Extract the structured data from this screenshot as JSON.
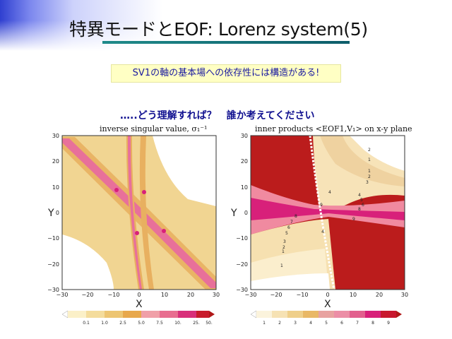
{
  "slide": {
    "title": "特異モードとEOF: Lorenz system(5)",
    "note": "SV1の軸の基本場への依存性には構造がある!",
    "question": "…..どう理解すれば？　誰か考えてください"
  },
  "left_panel": {
    "title": "inverse singular value, σ₁⁻¹",
    "xlabel": "X",
    "ylabel": "Y",
    "x_ticks": [
      "−30",
      "−20",
      "−10",
      "0",
      "10",
      "20",
      "30"
    ],
    "y_ticks": [
      "30",
      "20",
      "10",
      "0",
      "−10",
      "−20",
      "−30"
    ],
    "colorbar_labels": [
      "0.1",
      "1.0",
      "2.5",
      "5.0",
      "7.5",
      "10.",
      "25.",
      "50."
    ]
  },
  "right_panel": {
    "title": "inner products <EOF1,V₁> on x-y plane",
    "xlabel": "X",
    "ylabel": "Y",
    "x_ticks": [
      "−30",
      "−20",
      "−10",
      "0",
      "10",
      "20",
      "30"
    ],
    "y_ticks": [
      "30",
      "20",
      "10",
      "0",
      "−10",
      "−20",
      "−30"
    ],
    "colorbar_labels": [
      "1",
      "2",
      "3",
      "4",
      "5",
      "6",
      "7",
      "8",
      "9"
    ],
    "contour_labels": [
      "2",
      "1",
      "1",
      "2",
      "3",
      "4",
      "5",
      "6",
      "7",
      "8",
      "9",
      "9",
      "8",
      "7",
      "6",
      "5",
      "4",
      "3",
      "2",
      "1",
      "1",
      "4",
      "9",
      "8"
    ]
  },
  "colors": {
    "accent_blue": "#2f3fd0",
    "note_bg": "#ffffc4",
    "note_text": "#1a1aa0",
    "rule_teal": "#1f8a8a",
    "contour_light": "#f2d38a",
    "contour_mid": "#e8b060",
    "contour_pink": "#e8709a",
    "contour_magenta": "#d8207a",
    "contour_red": "#bb1c1c"
  }
}
